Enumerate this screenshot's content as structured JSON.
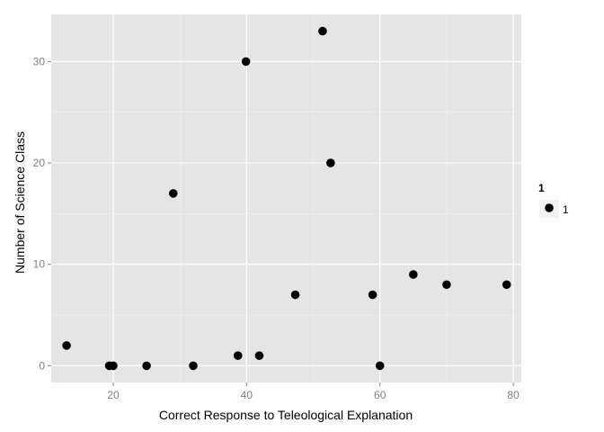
{
  "chart_data": {
    "type": "scatter",
    "title": "",
    "xlabel": "Correct Response to Teleological Explanation",
    "ylabel": "Number of Science Class",
    "xlim": [
      10.7,
      81.2
    ],
    "ylim": [
      -1.65,
      34.65
    ],
    "x_ticks": [
      20,
      40,
      60,
      80
    ],
    "x_tick_labels": [
      "20",
      "40",
      "60",
      "80"
    ],
    "y_ticks": [
      0,
      10,
      20,
      30
    ],
    "y_tick_labels": [
      "0",
      "10",
      "20",
      "30"
    ],
    "grid": true,
    "legend": {
      "title": "1",
      "position": "right",
      "entries": [
        "1"
      ]
    },
    "series": [
      {
        "name": "1",
        "color": "#000000",
        "points": [
          {
            "x": 13,
            "y": 2
          },
          {
            "x": 19.4,
            "y": 0
          },
          {
            "x": 20,
            "y": 0
          },
          {
            "x": 25,
            "y": 0
          },
          {
            "x": 29,
            "y": 17
          },
          {
            "x": 32,
            "y": 0
          },
          {
            "x": 38.7,
            "y": 1
          },
          {
            "x": 39.9,
            "y": 30
          },
          {
            "x": 41.9,
            "y": 1
          },
          {
            "x": 47.3,
            "y": 7
          },
          {
            "x": 51.4,
            "y": 33
          },
          {
            "x": 52.6,
            "y": 20
          },
          {
            "x": 58.9,
            "y": 7
          },
          {
            "x": 60,
            "y": 0
          },
          {
            "x": 65,
            "y": 9
          },
          {
            "x": 70,
            "y": 8
          },
          {
            "x": 79,
            "y": 8
          }
        ]
      }
    ],
    "colors": {
      "panel_background": "#e5e5e5",
      "grid_major": "#ffffff",
      "grid_minor": "#f2f2f2",
      "point": "#000000",
      "legend_key_background": "#f2f2f2"
    }
  }
}
